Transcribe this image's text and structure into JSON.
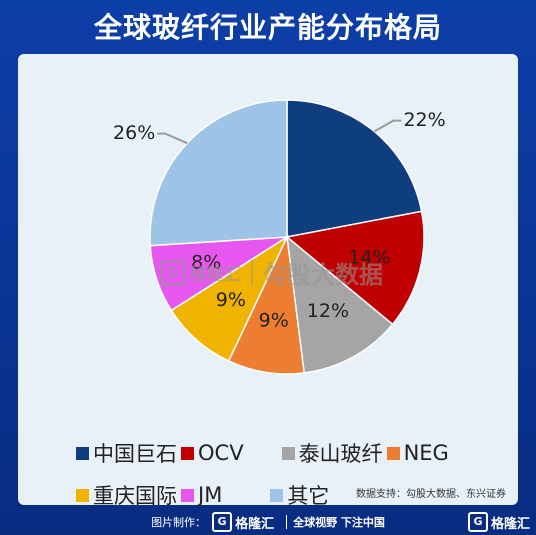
{
  "title": "全球玻纤行业产能分布格局",
  "chart_data": {
    "type": "pie",
    "title": "全球玻纤行业产能分布格局",
    "slices": [
      {
        "label": "中国巨石",
        "value": 22,
        "display": "22%",
        "color": "#0f3e7e"
      },
      {
        "label": "OCV",
        "value": 14,
        "display": "14%",
        "color": "#c00000"
      },
      {
        "label": "泰山玻纤",
        "value": 12,
        "display": "12%",
        "color": "#a5a5a5"
      },
      {
        "label": "NEG",
        "value": 9,
        "display": "9%",
        "color": "#ed7d31"
      },
      {
        "label": "重庆国际",
        "value": 9,
        "display": "9%",
        "color": "#f0b400"
      },
      {
        "label": "JM",
        "value": 8,
        "display": "8%",
        "color": "#e757f0"
      },
      {
        "label": "其它",
        "value": 26,
        "display": "26%",
        "color": "#9dc3e6"
      }
    ],
    "legend_placement": "bottom"
  },
  "legend": {
    "row1": [
      "中国巨石",
      "OCV",
      "泰山玻纤",
      "NEG"
    ],
    "row2": [
      "重庆国际",
      "JM",
      "其它"
    ]
  },
  "source": "数据支持：勾股大数据、东兴证券",
  "watermark": {
    "icon": "G",
    "brand": "格隆汇",
    "name": "勾股大数据"
  },
  "footer": {
    "made_by": "图片制作：",
    "brand_icon": "G",
    "brand": "格隆汇",
    "slogan": "全球视野 下注中国",
    "corner_icon": "G",
    "corner_brand": "格隆汇"
  }
}
